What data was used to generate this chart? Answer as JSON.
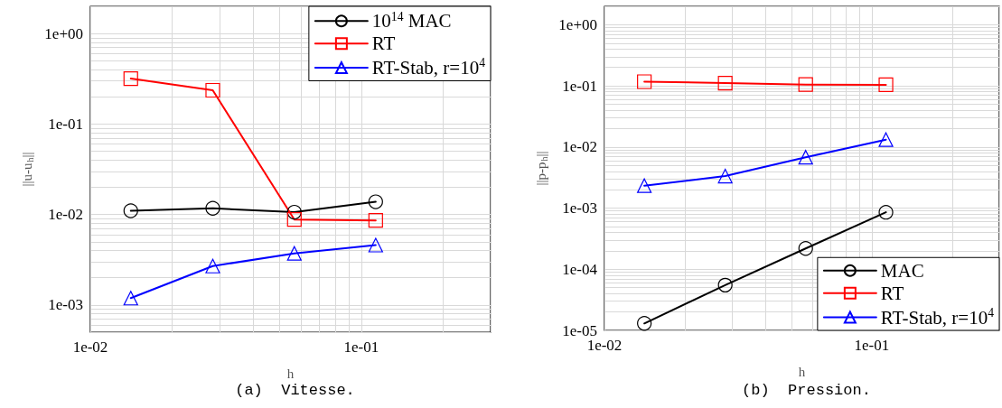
{
  "chart_data": [
    {
      "type": "line",
      "xlabel": "h",
      "ylabel": "||u-u$_{h}$||",
      "annotations": [
        "(a)  Vitesse."
      ],
      "log": "xy",
      "grid": true,
      "legend": "top right",
      "x": [
        0.0141,
        0.0283,
        0.0566,
        0.113
      ],
      "xlim": [
        0.01,
        0.3
      ],
      "ylim": [
        0.0005,
        2
      ],
      "xticks": [
        {
          "value": 0.01,
          "label": "1e-02"
        },
        {
          "value": 0.02,
          "label": null
        },
        {
          "value": 0.03,
          "label": null
        },
        {
          "value": 0.04,
          "label": null
        },
        {
          "value": 0.05,
          "label": null
        },
        {
          "value": 0.06,
          "label": null
        },
        {
          "value": 0.07,
          "label": null
        },
        {
          "value": 0.08,
          "label": null
        },
        {
          "value": 0.09,
          "label": null
        },
        {
          "value": 0.1,
          "label": "1e-01"
        },
        {
          "value": 0.2,
          "label": null
        },
        {
          "value": 0.3,
          "label": null
        }
      ],
      "yticks": [
        {
          "value": 0.0005,
          "label": null
        },
        {
          "value": 0.0006,
          "label": null
        },
        {
          "value": 0.0007,
          "label": null
        },
        {
          "value": 0.0008,
          "label": null
        },
        {
          "value": 0.0009,
          "label": null
        },
        {
          "value": 0.001,
          "label": "1e-03"
        },
        {
          "value": 0.002,
          "label": null
        },
        {
          "value": 0.003,
          "label": null
        },
        {
          "value": 0.004,
          "label": null
        },
        {
          "value": 0.005,
          "label": null
        },
        {
          "value": 0.006,
          "label": null
        },
        {
          "value": 0.007,
          "label": null
        },
        {
          "value": 0.008,
          "label": null
        },
        {
          "value": 0.009,
          "label": null
        },
        {
          "value": 0.01,
          "label": "1e-02"
        },
        {
          "value": 0.02,
          "label": null
        },
        {
          "value": 0.03,
          "label": null
        },
        {
          "value": 0.04,
          "label": null
        },
        {
          "value": 0.05,
          "label": null
        },
        {
          "value": 0.06,
          "label": null
        },
        {
          "value": 0.07,
          "label": null
        },
        {
          "value": 0.08,
          "label": null
        },
        {
          "value": 0.09,
          "label": null
        },
        {
          "value": 0.1,
          "label": "1e-01"
        },
        {
          "value": 0.2,
          "label": null
        },
        {
          "value": 0.3,
          "label": null
        },
        {
          "value": 0.4,
          "label": null
        },
        {
          "value": 0.5,
          "label": null
        },
        {
          "value": 0.6,
          "label": null
        },
        {
          "value": 0.7,
          "label": null
        },
        {
          "value": 0.8,
          "label": null
        },
        {
          "value": 0.9,
          "label": null
        },
        {
          "value": 1,
          "label": "1e+00"
        },
        {
          "value": 2,
          "label": null
        }
      ],
      "series": [
        {
          "name": "10$^{14}$ MAC",
          "color": "#000000",
          "marker": "circle",
          "line_style": "solid",
          "values": [
            0.011,
            0.0117,
            0.0106,
            0.0138
          ]
        },
        {
          "name": "RT",
          "color": "#ff0000",
          "marker": "square",
          "line_style": "solid",
          "values": [
            0.318,
            0.236,
            0.0088,
            0.0086
          ]
        },
        {
          "name": "RT-Stab, r=10$^{4}$",
          "color": "#0000ff",
          "marker": "triangle",
          "line_style": "solid",
          "values": [
            0.00119,
            0.00269,
            0.00372,
            0.00459
          ]
        }
      ]
    },
    {
      "type": "line",
      "xlabel": "h",
      "ylabel": "||p-p$_{h}$||",
      "annotations": [
        "(b)  Pression."
      ],
      "log": "xy",
      "grid": true,
      "legend": "bottom right",
      "x": [
        0.0141,
        0.0283,
        0.0566,
        0.113
      ],
      "xlim": [
        0.01,
        0.3
      ],
      "ylim": [
        1e-05,
        2
      ],
      "xticks": [
        {
          "value": 0.01,
          "label": "1e-02"
        },
        {
          "value": 0.02,
          "label": null
        },
        {
          "value": 0.03,
          "label": null
        },
        {
          "value": 0.04,
          "label": null
        },
        {
          "value": 0.05,
          "label": null
        },
        {
          "value": 0.06,
          "label": null
        },
        {
          "value": 0.07,
          "label": null
        },
        {
          "value": 0.08,
          "label": null
        },
        {
          "value": 0.09,
          "label": null
        },
        {
          "value": 0.1,
          "label": "1e-01"
        },
        {
          "value": 0.2,
          "label": null
        },
        {
          "value": 0.3,
          "label": null
        }
      ],
      "yticks": [
        {
          "value": 1e-05,
          "label": "1e-05"
        },
        {
          "value": 2e-05,
          "label": null
        },
        {
          "value": 3e-05,
          "label": null
        },
        {
          "value": 4e-05,
          "label": null
        },
        {
          "value": 5e-05,
          "label": null
        },
        {
          "value": 6e-05,
          "label": null
        },
        {
          "value": 7e-05,
          "label": null
        },
        {
          "value": 8e-05,
          "label": null
        },
        {
          "value": 9e-05,
          "label": null
        },
        {
          "value": 0.0001,
          "label": "1e-04"
        },
        {
          "value": 0.0002,
          "label": null
        },
        {
          "value": 0.0003,
          "label": null
        },
        {
          "value": 0.0004,
          "label": null
        },
        {
          "value": 0.0005,
          "label": null
        },
        {
          "value": 0.0006,
          "label": null
        },
        {
          "value": 0.0007,
          "label": null
        },
        {
          "value": 0.0008,
          "label": null
        },
        {
          "value": 0.0009,
          "label": null
        },
        {
          "value": 0.001,
          "label": "1e-03"
        },
        {
          "value": 0.002,
          "label": null
        },
        {
          "value": 0.003,
          "label": null
        },
        {
          "value": 0.004,
          "label": null
        },
        {
          "value": 0.005,
          "label": null
        },
        {
          "value": 0.006,
          "label": null
        },
        {
          "value": 0.007,
          "label": null
        },
        {
          "value": 0.008,
          "label": null
        },
        {
          "value": 0.009,
          "label": null
        },
        {
          "value": 0.01,
          "label": "1e-02"
        },
        {
          "value": 0.02,
          "label": null
        },
        {
          "value": 0.03,
          "label": null
        },
        {
          "value": 0.04,
          "label": null
        },
        {
          "value": 0.05,
          "label": null
        },
        {
          "value": 0.06,
          "label": null
        },
        {
          "value": 0.07,
          "label": null
        },
        {
          "value": 0.08,
          "label": null
        },
        {
          "value": 0.09,
          "label": null
        },
        {
          "value": 0.1,
          "label": "1e-01"
        },
        {
          "value": 0.2,
          "label": null
        },
        {
          "value": 0.3,
          "label": null
        },
        {
          "value": 0.4,
          "label": null
        },
        {
          "value": 0.5,
          "label": null
        },
        {
          "value": 0.6,
          "label": null
        },
        {
          "value": 0.7,
          "label": null
        },
        {
          "value": 0.8,
          "label": null
        },
        {
          "value": 0.9,
          "label": null
        },
        {
          "value": 1,
          "label": "1e+00"
        },
        {
          "value": 2,
          "label": null
        }
      ],
      "series": [
        {
          "name": "MAC",
          "color": "#000000",
          "marker": "circle",
          "line_style": "solid",
          "values": [
            1.3e-05,
            5.5e-05,
            0.000219,
            0.000855
          ]
        },
        {
          "name": "RT",
          "color": "#ff0000",
          "marker": "square",
          "line_style": "solid",
          "values": [
            0.117,
            0.111,
            0.105,
            0.104
          ]
        },
        {
          "name": "RT-Stab, r=10$^{4}$",
          "color": "#0000ff",
          "marker": "triangle",
          "line_style": "solid",
          "values": [
            0.00233,
            0.00334,
            0.0068,
            0.0132
          ]
        }
      ]
    }
  ]
}
